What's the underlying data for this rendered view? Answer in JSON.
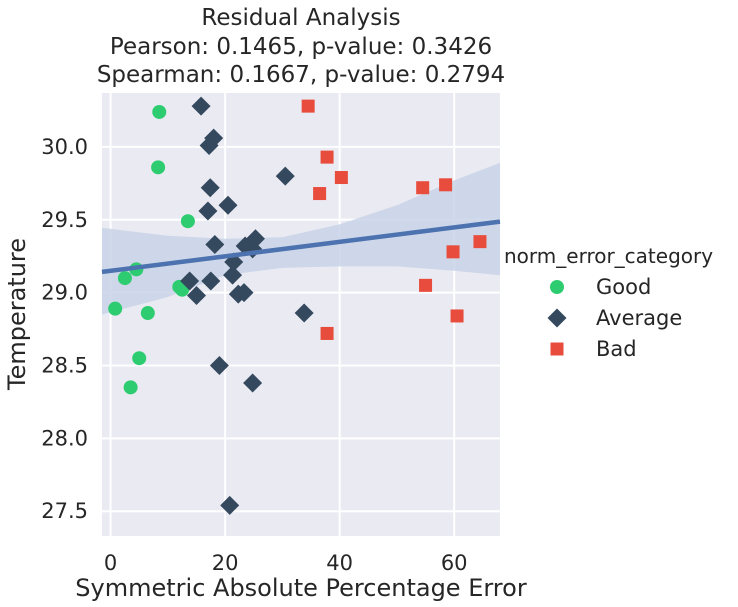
{
  "chart_data": {
    "type": "scatter",
    "title_lines": [
      "Residual Analysis",
      "Pearson: 0.1465, p-value: 0.3426",
      "Spearman: 0.1667, p-value: 0.2794"
    ],
    "xlabel": "Symmetric Absolute Percentage Error",
    "ylabel": "Temperature",
    "xlim": [
      -1.5,
      68.0
    ],
    "ylim": [
      27.33,
      30.37
    ],
    "x_ticks": [
      0,
      20,
      40,
      60
    ],
    "y_ticks": [
      27.5,
      28.0,
      28.5,
      29.0,
      29.5,
      30.0
    ],
    "y_tick_labels": [
      "27.5",
      "28.0",
      "28.5",
      "29.0",
      "29.5",
      "30.0"
    ],
    "grid": true,
    "background_color": "#eaeaf2",
    "legend_title": "norm_error_category",
    "legend_position": "right",
    "regression": {
      "intercept": 29.15,
      "slope": 0.00496,
      "line_color": "#4c72b0",
      "band_color": "#c9d3e8",
      "ci_band": [
        {
          "x": -1.5,
          "low": 28.85,
          "high": 29.445
        },
        {
          "x": 10,
          "low": 28.97,
          "high": 29.39
        },
        {
          "x": 20,
          "low": 29.12,
          "high": 29.37
        },
        {
          "x": 30,
          "low": 29.17,
          "high": 29.38
        },
        {
          "x": 40,
          "low": 29.18,
          "high": 29.47
        },
        {
          "x": 50,
          "low": 29.18,
          "high": 29.6
        },
        {
          "x": 60,
          "low": 29.15,
          "high": 29.77
        },
        {
          "x": 68,
          "low": 29.12,
          "high": 29.89
        }
      ]
    },
    "series": [
      {
        "name": "Good",
        "marker": "circle",
        "color": "#2ecc71",
        "points": [
          [
            8.5,
            30.24
          ],
          [
            8.3,
            29.86
          ],
          [
            13.5,
            29.49
          ],
          [
            4.5,
            29.16
          ],
          [
            2.5,
            29.1
          ],
          [
            12.0,
            29.04
          ],
          [
            12.5,
            29.02
          ],
          [
            0.8,
            28.89
          ],
          [
            6.5,
            28.86
          ],
          [
            5.0,
            28.55
          ],
          [
            3.5,
            28.35
          ]
        ]
      },
      {
        "name": "Average",
        "marker": "diamond",
        "color": "#34495e",
        "points": [
          [
            15.8,
            30.28
          ],
          [
            18.0,
            30.06
          ],
          [
            17.2,
            30.01
          ],
          [
            30.5,
            29.8
          ],
          [
            17.4,
            29.72
          ],
          [
            20.5,
            29.6
          ],
          [
            17.0,
            29.56
          ],
          [
            18.2,
            29.33
          ],
          [
            25.3,
            29.37
          ],
          [
            23.5,
            29.32
          ],
          [
            24.8,
            29.3
          ],
          [
            21.5,
            29.21
          ],
          [
            21.3,
            29.12
          ],
          [
            13.8,
            29.08
          ],
          [
            17.5,
            29.08
          ],
          [
            15.0,
            28.98
          ],
          [
            22.3,
            28.99
          ],
          [
            23.3,
            29.0
          ],
          [
            33.8,
            28.86
          ],
          [
            19.0,
            28.5
          ],
          [
            24.8,
            28.38
          ],
          [
            20.8,
            27.54
          ]
        ]
      },
      {
        "name": "Bad",
        "marker": "square",
        "color": "#e74c3c",
        "points": [
          [
            34.5,
            30.28
          ],
          [
            37.8,
            29.93
          ],
          [
            40.3,
            29.79
          ],
          [
            36.5,
            29.68
          ],
          [
            54.5,
            29.72
          ],
          [
            58.5,
            29.74
          ],
          [
            64.5,
            29.35
          ],
          [
            59.8,
            29.28
          ],
          [
            55.0,
            29.05
          ],
          [
            60.5,
            28.84
          ],
          [
            37.8,
            28.72
          ]
        ]
      }
    ]
  }
}
